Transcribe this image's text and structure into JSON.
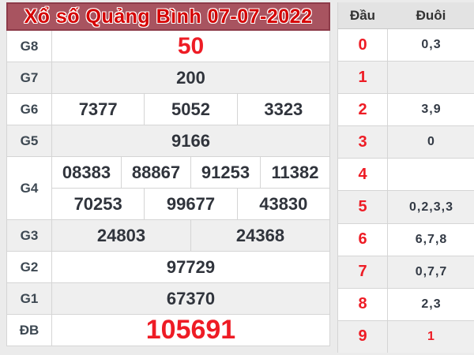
{
  "title": "Xổ số Quảng Bình 07-07-2022",
  "colors": {
    "header_bg": "#a85460",
    "header_border": "#8d3b49",
    "title_red": "#d60000",
    "accent_red": "#ee1c25",
    "number_dark": "#30343c",
    "row_alt_bg": "#efefef",
    "page_bg": "#ebebeb"
  },
  "results": {
    "rows": [
      {
        "label": "G8",
        "lines": [
          [
            "50"
          ]
        ],
        "style": "red-large"
      },
      {
        "label": "G7",
        "lines": [
          [
            "200"
          ]
        ]
      },
      {
        "label": "G6",
        "lines": [
          [
            "7377",
            "5052",
            "3323"
          ]
        ]
      },
      {
        "label": "G5",
        "lines": [
          [
            "9166"
          ]
        ]
      },
      {
        "label": "G4",
        "lines": [
          [
            "08383",
            "88867",
            "91253",
            "11382"
          ],
          [
            "70253",
            "99677",
            "43830"
          ]
        ]
      },
      {
        "label": "G3",
        "lines": [
          [
            "24803",
            "24368"
          ]
        ]
      },
      {
        "label": "G2",
        "lines": [
          [
            "97729"
          ]
        ]
      },
      {
        "label": "G1",
        "lines": [
          [
            "67370"
          ]
        ]
      },
      {
        "label": "ĐB",
        "lines": [
          [
            "105691"
          ]
        ],
        "style": "red-xlarge"
      }
    ]
  },
  "dau_duoi": {
    "headers": {
      "dau": "Đầu",
      "duoi": "Đuôi"
    },
    "rows": [
      {
        "dau": "0",
        "duoi": "0,3"
      },
      {
        "dau": "1",
        "duoi": ""
      },
      {
        "dau": "2",
        "duoi": "3,9"
      },
      {
        "dau": "3",
        "duoi": "0"
      },
      {
        "dau": "4",
        "duoi": ""
      },
      {
        "dau": "5",
        "duoi": "0,2,3,3"
      },
      {
        "dau": "6",
        "duoi": "6,7,8"
      },
      {
        "dau": "7",
        "duoi": "0,7,7"
      },
      {
        "dau": "8",
        "duoi": "2,3"
      },
      {
        "dau": "9",
        "duoi": "1",
        "duoi_highlight": true
      }
    ]
  }
}
